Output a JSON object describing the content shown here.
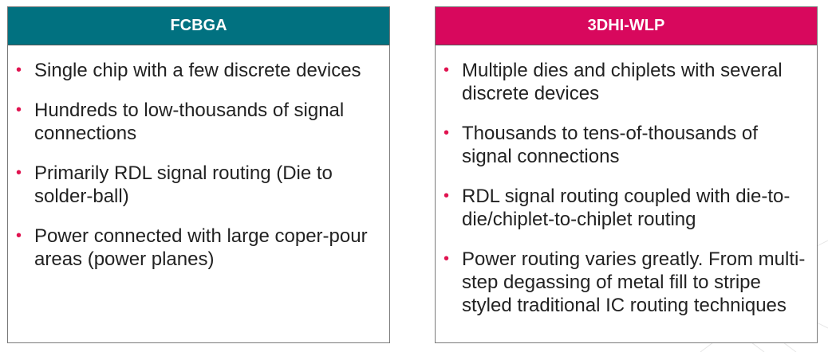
{
  "colors": {
    "fcbga_header": "#017180",
    "wlp_header": "#D8085D",
    "bullet": "#E0124F"
  },
  "columns": [
    {
      "title": "FCBGA",
      "items": [
        "Single chip with a few discrete devices",
        "Hundreds to low-thousands of signal connections",
        "Primarily RDL signal routing (Die to solder-ball)",
        "Power connected with large coper-pour areas (power planes)"
      ]
    },
    {
      "title": "3DHI-WLP",
      "items": [
        "Multiple dies and chiplets with several discrete devices",
        "Thousands to tens-of-thousands of signal connections",
        "RDL signal routing coupled with die-to-die/chiplet-to-chiplet routing",
        "Power routing varies greatly. From multi-step degassing of metal fill to stripe styled traditional IC routing techniques"
      ]
    }
  ]
}
